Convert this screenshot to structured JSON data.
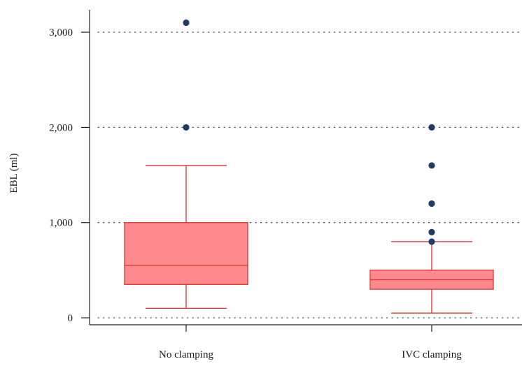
{
  "chart_data": {
    "type": "box",
    "ylabel": "EBL (ml)",
    "xlabel": "",
    "categories": [
      "No clamping",
      "IVC clamping"
    ],
    "ylim": [
      -60,
      3300
    ],
    "yticks": [
      0,
      1000,
      2000,
      3000
    ],
    "ytick_labels": [
      "0",
      "1,000",
      "2,000",
      "3,000"
    ],
    "grid": "horizontal dotted",
    "colors": {
      "box_fill": "#ff8a8e",
      "box_stroke": "#e0322e",
      "outlier": "#1f3b66",
      "axis": "#222222",
      "grid": "#555555"
    },
    "boxes": [
      {
        "name": "No clamping",
        "whisker_low": 100,
        "q1": 350,
        "median": 550,
        "q3": 1000,
        "whisker_high": 1600,
        "outliers": [
          2000,
          3100
        ]
      },
      {
        "name": "IVC clamping",
        "whisker_low": 50,
        "q1": 300,
        "median": 400,
        "q3": 500,
        "whisker_high": 800,
        "outliers": [
          800,
          900,
          1200,
          1600,
          2000
        ]
      }
    ]
  }
}
